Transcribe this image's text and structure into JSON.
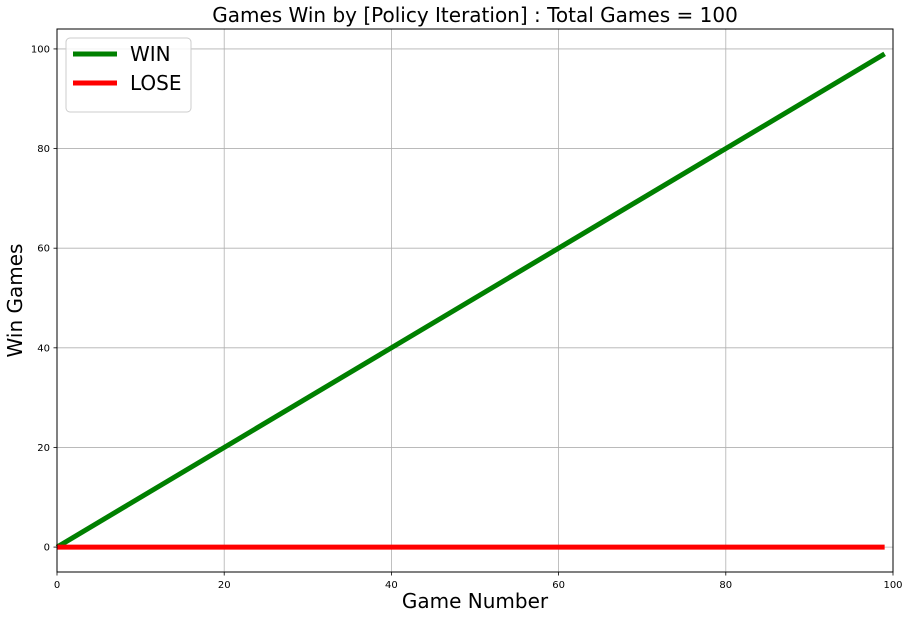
{
  "chart_data": {
    "type": "line",
    "title": "Games Win by [Policy Iteration] : Total Games = 100",
    "xlabel": "Game Number",
    "ylabel": "Win Games",
    "xlim": [
      0,
      100
    ],
    "ylim": [
      -5,
      104
    ],
    "xticks": [
      0,
      20,
      40,
      60,
      80,
      100
    ],
    "yticks": [
      0,
      20,
      40,
      60,
      80,
      100
    ],
    "grid": true,
    "legend_position": "top-left",
    "series": [
      {
        "name": "WIN",
        "color": "#008000",
        "x": [
          0,
          99
        ],
        "y": [
          0,
          99
        ]
      },
      {
        "name": "LOSE",
        "color": "#ff0000",
        "x": [
          0,
          99
        ],
        "y": [
          0,
          0
        ]
      }
    ]
  }
}
